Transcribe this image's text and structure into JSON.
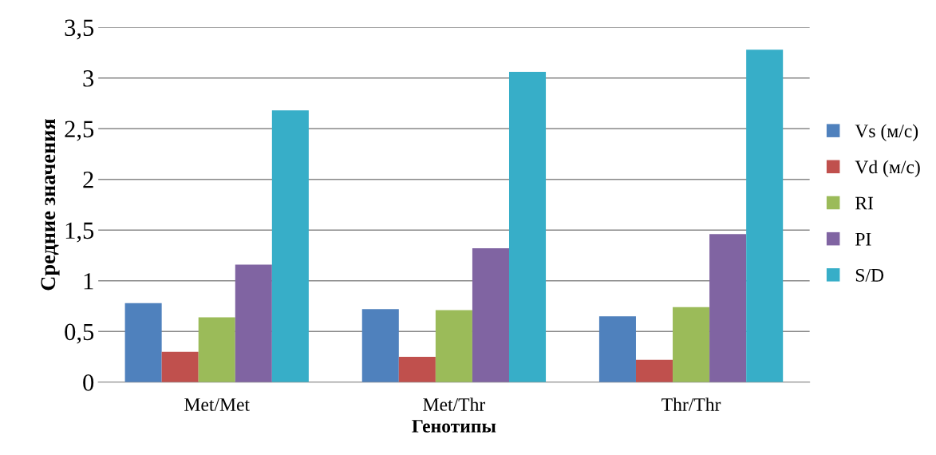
{
  "chart_data": {
    "type": "bar",
    "xlabel": "Генотипы",
    "ylabel": "Средние значения",
    "categories": [
      "Met/Met",
      "Met/Thr",
      "Thr/Thr"
    ],
    "series": [
      {
        "name": "Vs (м/с)",
        "color": "#4f81bd",
        "values": [
          0.78,
          0.72,
          0.65
        ]
      },
      {
        "name": "Vd (м/с)",
        "color": "#c0504d",
        "values": [
          0.3,
          0.25,
          0.22
        ]
      },
      {
        "name": "RI",
        "color": "#9bbb59",
        "values": [
          0.64,
          0.71,
          0.74
        ]
      },
      {
        "name": "PI",
        "color": "#8064a2",
        "values": [
          1.16,
          1.32,
          1.46
        ]
      },
      {
        "name": "S/D",
        "color": "#37aec8",
        "values": [
          2.68,
          3.06,
          3.28
        ]
      }
    ],
    "ylim": [
      0,
      3.5
    ],
    "yticks": [
      {
        "value": 0,
        "label": "0"
      },
      {
        "value": 0.5,
        "label": "0,5"
      },
      {
        "value": 1,
        "label": "1"
      },
      {
        "value": 1.5,
        "label": "1,5"
      },
      {
        "value": 2,
        "label": "2"
      },
      {
        "value": 2.5,
        "label": "2,5"
      },
      {
        "value": 3,
        "label": "3"
      },
      {
        "value": 3.5,
        "label": "3,5"
      }
    ],
    "grid": "y",
    "legend": "right"
  }
}
